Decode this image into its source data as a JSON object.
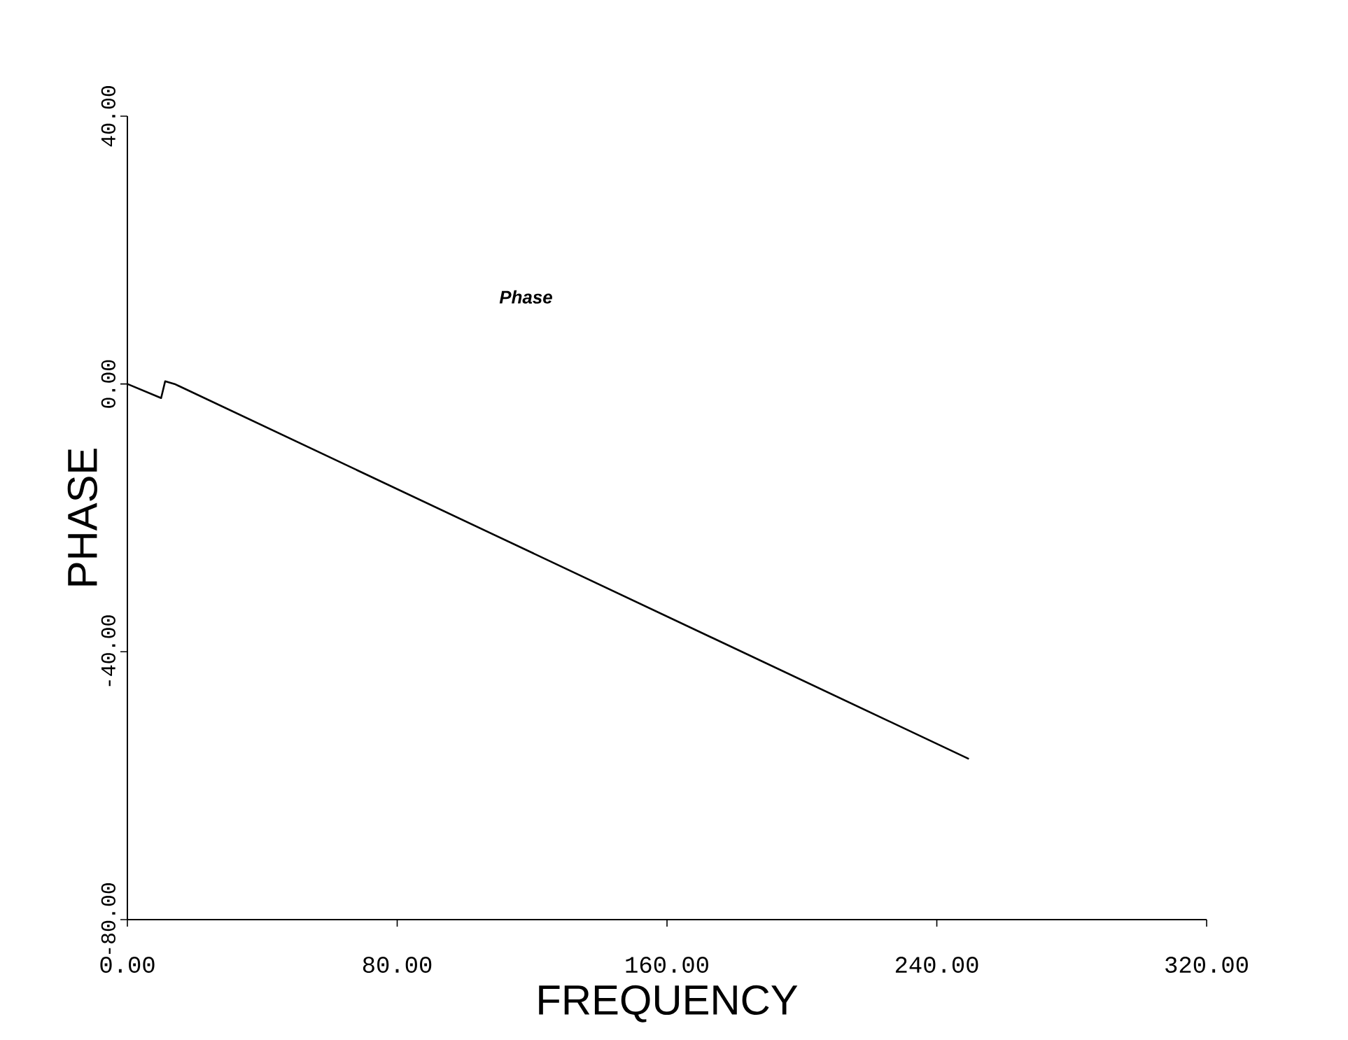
{
  "chart_data": {
    "type": "line",
    "xlabel": "FREQUENCY",
    "ylabel": "PHASE",
    "xlim": [
      0,
      320
    ],
    "ylim": [
      -80,
      40
    ],
    "xticks": [
      {
        "value": 0,
        "label": "0.00"
      },
      {
        "value": 80,
        "label": "80.00"
      },
      {
        "value": 160,
        "label": "160.00"
      },
      {
        "value": 240,
        "label": "240.00"
      },
      {
        "value": 320,
        "label": "320.00"
      }
    ],
    "yticks": [
      {
        "value": -80,
        "label": "-80.00"
      },
      {
        "value": -40,
        "label": "-40.00"
      },
      {
        "value": 0,
        "label": "0.00"
      },
      {
        "value": 40,
        "label": "40.00"
      }
    ],
    "series": [
      {
        "name": "Phase",
        "color": "#000000",
        "x": [
          0,
          10,
          11.2,
          14,
          249.5
        ],
        "values": [
          0,
          -2.1,
          0.4,
          0,
          -56
        ]
      }
    ],
    "grid": false,
    "legend": false,
    "marker": "none",
    "line_style": "solid"
  }
}
